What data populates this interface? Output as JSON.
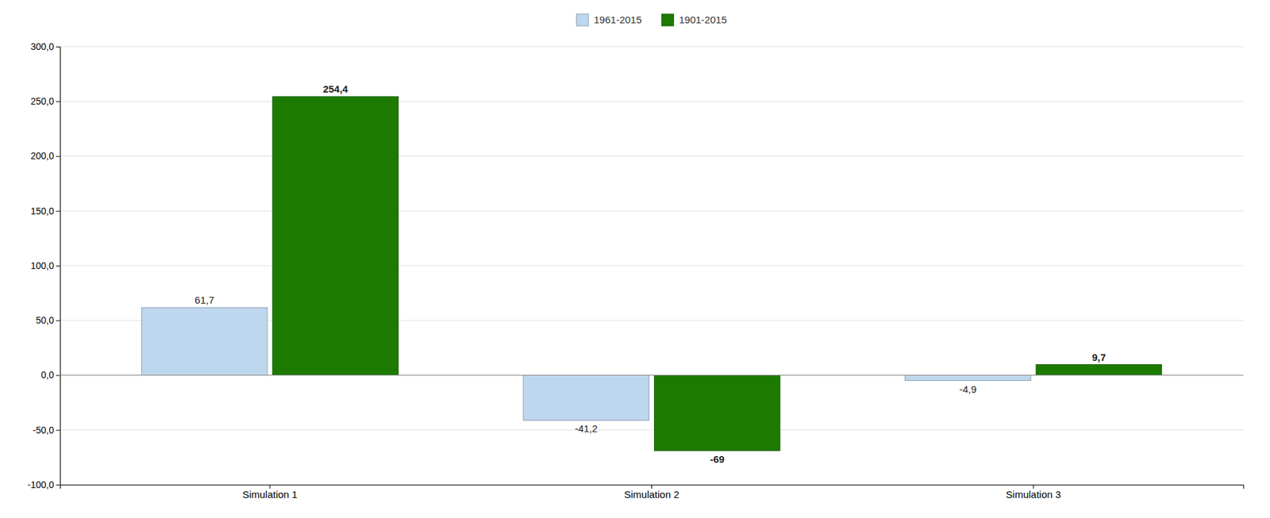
{
  "chart_data": {
    "type": "bar",
    "categories": [
      "Simulation 1",
      "Simulation 2",
      "Simulation 3"
    ],
    "series": [
      {
        "name": "1961-2015",
        "color": "#bdd7ee",
        "values": [
          61.7,
          -41.2,
          -4.9
        ],
        "value_labels": [
          "61,7",
          "-41,2",
          "-4,9"
        ]
      },
      {
        "name": "1901-2015",
        "color": "#1d7a00",
        "values": [
          254.4,
          -69.0,
          9.7
        ],
        "value_labels": [
          "254,4",
          "-69",
          "9,7"
        ]
      }
    ],
    "ylim": [
      -100,
      300
    ],
    "yticks": [
      {
        "value": -100.0,
        "label": "-100,0"
      },
      {
        "value": -50.0,
        "label": "-50,0"
      },
      {
        "value": 0.0,
        "label": "0,0"
      },
      {
        "value": 50.0,
        "label": "50,0"
      },
      {
        "value": 100.0,
        "label": "100,0"
      },
      {
        "value": 150.0,
        "label": "150,0"
      },
      {
        "value": 200.0,
        "label": "200,0"
      },
      {
        "value": 250.0,
        "label": "250,0"
      },
      {
        "value": 300.0,
        "label": "300,0"
      }
    ],
    "grid": true,
    "legend": "top",
    "data_labels": true
  }
}
